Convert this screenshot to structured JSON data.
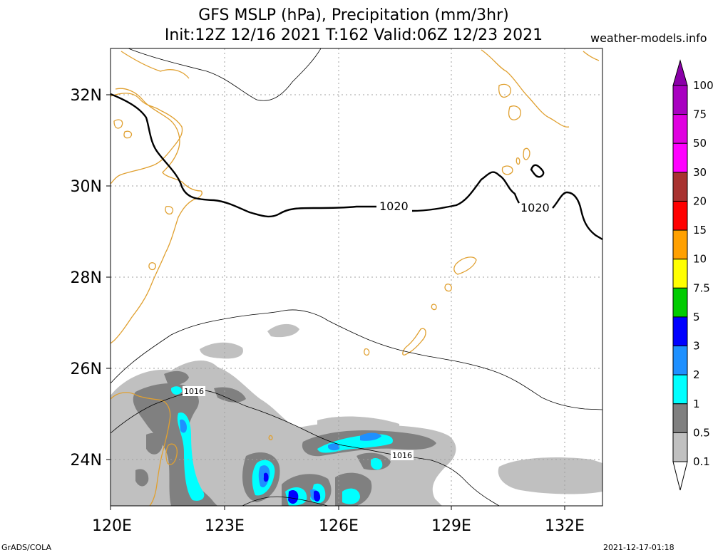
{
  "header": {
    "title_line1": "GFS MSLP (hPa), Precipitation (mm/3hr)",
    "title_line2": "Init:12Z 12/16 2021 T:162 Valid:06Z 12/23 2021",
    "site": "weather-models.info"
  },
  "axes": {
    "lon_labels": [
      "120E",
      "123E",
      "126E",
      "129E",
      "132E"
    ],
    "lat_labels": [
      "32N",
      "30N",
      "28N",
      "26N",
      "24N"
    ]
  },
  "isobars": {
    "labels": [
      "1020",
      "1020",
      "1016",
      "1016"
    ]
  },
  "colorbar": {
    "labels": [
      "100",
      "75",
      "50",
      "30",
      "20",
      "15",
      "10",
      "7.5",
      "5",
      "3",
      "2",
      "1",
      "0.5",
      "0.1"
    ],
    "colors": [
      "#8a00a8",
      "#a800c0",
      "#e000e0",
      "#ff00ff",
      "#a83230",
      "#ff0000",
      "#ffa000",
      "#ffff00",
      "#00cc00",
      "#0000ff",
      "#1e90ff",
      "#00ffff",
      "#808080",
      "#c0c0c0",
      "#ffffff"
    ]
  },
  "colors": {
    "coastline": "#e0a030",
    "grid": "#a0a0a0"
  },
  "footer": {
    "left": "GrADS/COLA",
    "right": "2021-12-17-01:18"
  }
}
